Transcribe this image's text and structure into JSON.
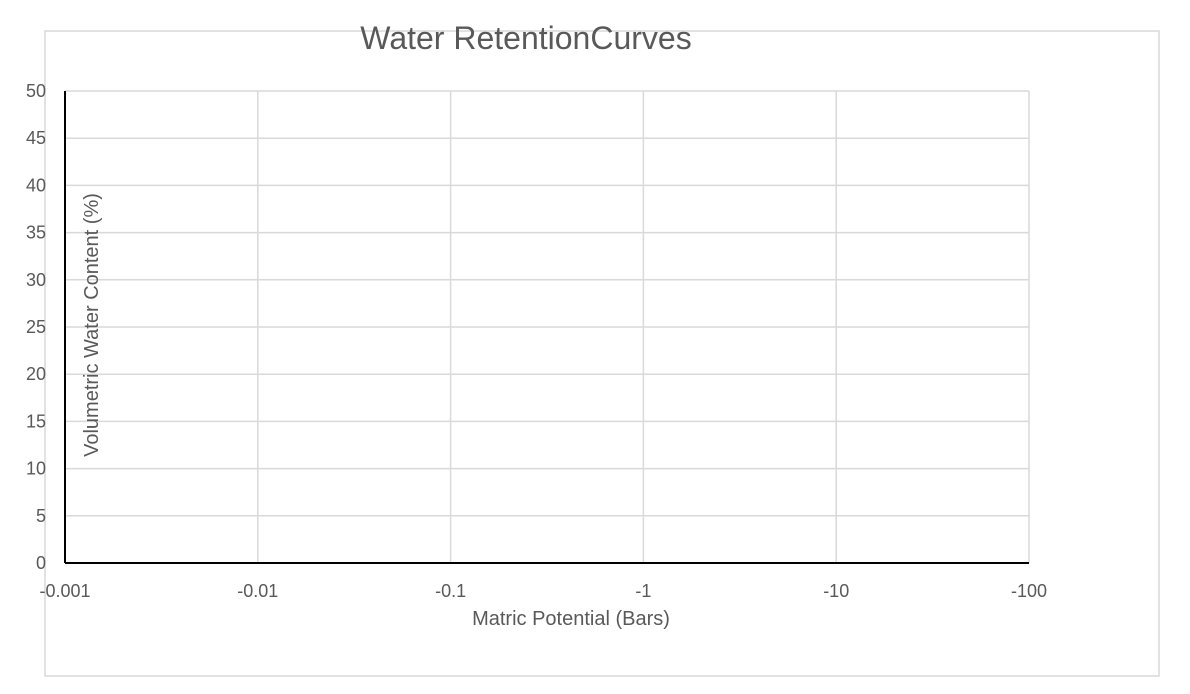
{
  "chart_data": {
    "type": "line",
    "title": "Water RetentionCurves",
    "xlabel": "Matric  Potential  (Bars)",
    "ylabel": "Volumetric Water Content (%)",
    "x_scale": "log",
    "x_ticks": [
      "-0.001",
      "-0.01",
      "-0.1",
      "-1",
      "-10",
      "-100"
    ],
    "y_ticks": [
      "0",
      "5",
      "10",
      "15",
      "20",
      "25",
      "30",
      "35",
      "40",
      "45",
      "50"
    ],
    "ylim": [
      0,
      50
    ],
    "grid": true,
    "series": []
  }
}
